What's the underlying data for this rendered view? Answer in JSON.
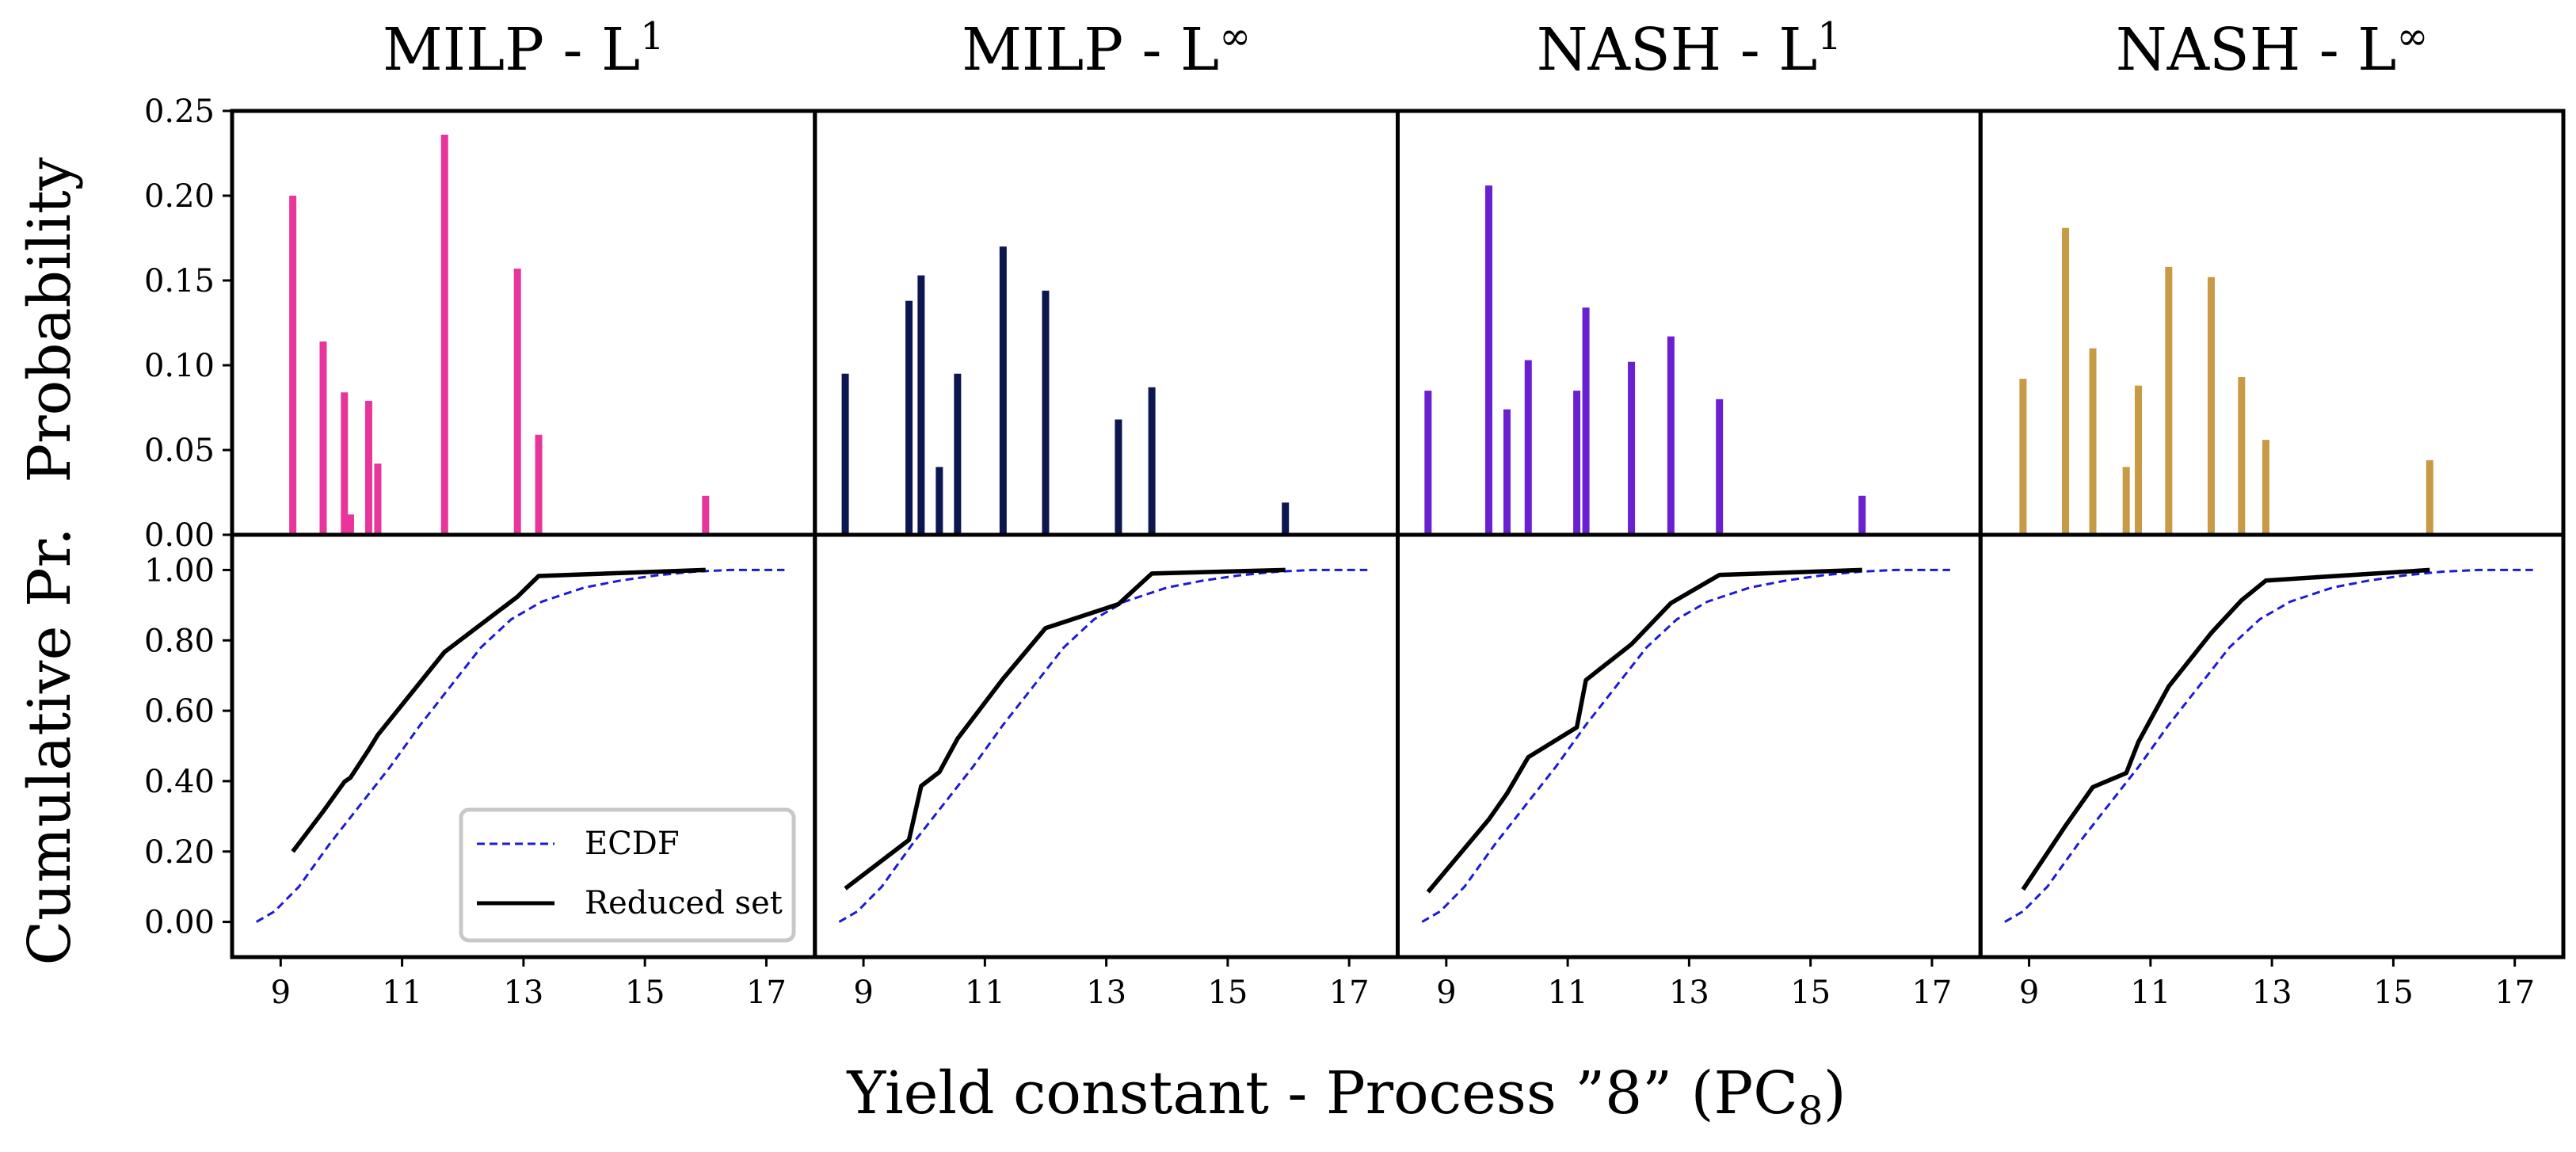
{
  "figure": {
    "xlabel": "Yield constant - Process ”8” (PC",
    "xlabel_sub": "8",
    "xlabel_end": ")",
    "ylabel_top": "Probability",
    "ylabel_bottom": "Cumulative Pr."
  },
  "legend": {
    "ecdf_label": "ECDF",
    "reduced_label": "Reduced set"
  },
  "colors": {
    "milp_l1": "#e8359b",
    "milp_linf": "#0c1650",
    "nash_l1": "#6a1fd0",
    "nash_linf": "#c99a45",
    "ecdf": "#1b1bd6",
    "reduced": "#000000"
  },
  "chart_data": [
    {
      "type": "bar",
      "title": "MILP - L",
      "title_sup": "1",
      "ylabel": "Probability",
      "xlim": [
        8.2,
        17.8
      ],
      "ylim": [
        0,
        0.25
      ],
      "yticks": [
        "0.00",
        "0.05",
        "0.10",
        "0.15",
        "0.20",
        "0.25"
      ],
      "x": [
        9.2,
        9.7,
        10.05,
        10.15,
        10.45,
        10.6,
        11.7,
        12.9,
        13.25,
        16.0
      ],
      "values": [
        0.2,
        0.114,
        0.084,
        0.012,
        0.079,
        0.042,
        0.236,
        0.157,
        0.059,
        0.023
      ]
    },
    {
      "type": "bar",
      "title": "MILP - L",
      "title_sup": "∞",
      "ylabel": "Probability",
      "xlim": [
        8.2,
        17.8
      ],
      "ylim": [
        0,
        0.25
      ],
      "x": [
        8.7,
        9.75,
        9.95,
        10.25,
        10.55,
        11.3,
        12.0,
        13.2,
        13.75,
        15.95
      ],
      "values": [
        0.095,
        0.138,
        0.153,
        0.04,
        0.095,
        0.17,
        0.144,
        0.068,
        0.087,
        0.019
      ]
    },
    {
      "type": "bar",
      "title": "NASH - L",
      "title_sup": "1",
      "ylabel": "Probability",
      "xlim": [
        8.2,
        17.8
      ],
      "ylim": [
        0,
        0.25
      ],
      "x": [
        8.7,
        9.7,
        10.0,
        10.35,
        11.15,
        11.3,
        12.05,
        12.7,
        13.5,
        15.85
      ],
      "values": [
        0.085,
        0.206,
        0.074,
        0.103,
        0.085,
        0.134,
        0.102,
        0.117,
        0.08,
        0.023
      ]
    },
    {
      "type": "bar",
      "title": "NASH - L",
      "title_sup": "∞",
      "ylabel": "Probability",
      "xlim": [
        8.2,
        17.8
      ],
      "ylim": [
        0,
        0.25
      ],
      "x": [
        8.9,
        9.6,
        10.05,
        10.6,
        10.8,
        11.3,
        12.0,
        12.5,
        12.9,
        15.6
      ],
      "values": [
        0.092,
        0.181,
        0.11,
        0.04,
        0.088,
        0.158,
        0.152,
        0.093,
        0.056,
        0.044
      ]
    },
    {
      "type": "line",
      "ylabel": "Cumulative Pr.",
      "xlim": [
        8.2,
        17.8
      ],
      "ylim": [
        -0.1,
        1.1
      ],
      "yticks": [
        "0.00",
        "0.20",
        "0.40",
        "0.60",
        "0.80",
        "1.00"
      ],
      "xticks": [
        "9",
        "11",
        "13",
        "15",
        "17"
      ],
      "series": [
        {
          "name": "ECDF",
          "x": [
            8.6,
            8.9,
            9.3,
            9.8,
            10.3,
            10.8,
            11.3,
            11.8,
            12.3,
            12.8,
            13.3,
            14.0,
            14.6,
            15.2,
            15.8,
            16.4,
            16.9,
            17.3
          ],
          "values": [
            0.0,
            0.03,
            0.1,
            0.22,
            0.33,
            0.44,
            0.56,
            0.67,
            0.78,
            0.86,
            0.91,
            0.95,
            0.97,
            0.985,
            0.995,
            1.0,
            1.0,
            1.0
          ]
        },
        {
          "name": "Reduced set",
          "x": [
            9.2,
            9.7,
            10.05,
            10.15,
            10.45,
            10.6,
            11.7,
            12.9,
            13.25,
            16.0
          ],
          "values": [
            0.2,
            0.314,
            0.398,
            0.41,
            0.489,
            0.531,
            0.767,
            0.924,
            0.983,
            1.0
          ]
        }
      ]
    },
    {
      "type": "line",
      "ylabel": "Cumulative Pr.",
      "xlim": [
        8.2,
        17.8
      ],
      "ylim": [
        -0.1,
        1.1
      ],
      "series": [
        {
          "name": "ECDF",
          "x": [
            8.6,
            8.9,
            9.3,
            9.8,
            10.3,
            10.8,
            11.3,
            11.8,
            12.3,
            12.8,
            13.3,
            14.0,
            14.6,
            15.2,
            15.8,
            16.4,
            16.9,
            17.3
          ],
          "values": [
            0.0,
            0.03,
            0.1,
            0.22,
            0.33,
            0.44,
            0.56,
            0.67,
            0.78,
            0.86,
            0.91,
            0.95,
            0.97,
            0.985,
            0.995,
            1.0,
            1.0,
            1.0
          ]
        },
        {
          "name": "Reduced set",
          "x": [
            8.7,
            9.75,
            9.95,
            10.25,
            10.55,
            11.3,
            12.0,
            13.2,
            13.75,
            15.95
          ],
          "values": [
            0.095,
            0.233,
            0.386,
            0.426,
            0.521,
            0.691,
            0.835,
            0.903,
            0.99,
            1.0
          ]
        }
      ]
    },
    {
      "type": "line",
      "ylabel": "Cumulative Pr.",
      "xlim": [
        8.2,
        17.8
      ],
      "ylim": [
        -0.1,
        1.1
      ],
      "series": [
        {
          "name": "ECDF",
          "x": [
            8.6,
            8.9,
            9.3,
            9.8,
            10.3,
            10.8,
            11.3,
            11.8,
            12.3,
            12.8,
            13.3,
            14.0,
            14.6,
            15.2,
            15.8,
            16.4,
            16.9,
            17.3
          ],
          "values": [
            0.0,
            0.03,
            0.1,
            0.22,
            0.33,
            0.44,
            0.56,
            0.67,
            0.78,
            0.86,
            0.91,
            0.95,
            0.97,
            0.985,
            0.995,
            1.0,
            1.0,
            1.0
          ]
        },
        {
          "name": "Reduced set",
          "x": [
            8.7,
            9.7,
            10.0,
            10.35,
            11.15,
            11.3,
            12.05,
            12.7,
            13.5,
            15.85
          ],
          "values": [
            0.085,
            0.291,
            0.365,
            0.468,
            0.553,
            0.687,
            0.789,
            0.906,
            0.986,
            1.0
          ]
        }
      ]
    },
    {
      "type": "line",
      "ylabel": "Cumulative Pr.",
      "xlim": [
        8.2,
        17.8
      ],
      "ylim": [
        -0.1,
        1.1
      ],
      "series": [
        {
          "name": "ECDF",
          "x": [
            8.6,
            8.9,
            9.3,
            9.8,
            10.3,
            10.8,
            11.3,
            11.8,
            12.3,
            12.8,
            13.3,
            14.0,
            14.6,
            15.2,
            15.8,
            16.4,
            16.9,
            17.3
          ],
          "values": [
            0.0,
            0.03,
            0.1,
            0.22,
            0.33,
            0.44,
            0.56,
            0.67,
            0.78,
            0.86,
            0.91,
            0.95,
            0.97,
            0.985,
            0.995,
            1.0,
            1.0,
            1.0
          ]
        },
        {
          "name": "Reduced set",
          "x": [
            8.9,
            9.6,
            10.05,
            10.6,
            10.8,
            11.3,
            12.0,
            12.5,
            12.9,
            15.6
          ],
          "values": [
            0.092,
            0.273,
            0.383,
            0.423,
            0.511,
            0.669,
            0.821,
            0.914,
            0.97,
            1.0
          ]
        }
      ]
    }
  ]
}
